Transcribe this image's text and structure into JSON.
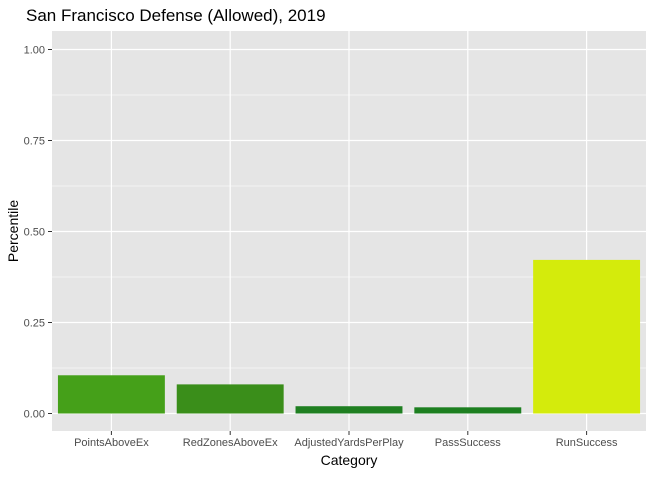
{
  "chart_data": {
    "type": "bar",
    "title": "San Francisco Defense (Allowed), 2019",
    "xlabel": "Category",
    "ylabel": "Percentile",
    "categories": [
      "PointsAboveEx",
      "RedZonesAboveEx",
      "AdjustedYardsPerPlay",
      "PassSuccess",
      "RunSuccess"
    ],
    "values": [
      0.105,
      0.08,
      0.02,
      0.017,
      0.422
    ],
    "colors": [
      "#45a019",
      "#3a8e1a",
      "#1f7f21",
      "#1d7f20",
      "#d4eb0c"
    ],
    "ylim": [
      0,
      1.0
    ],
    "yticks": [
      0.0,
      0.25,
      0.5,
      0.75,
      1.0
    ],
    "ytick_labels": [
      "0.00",
      "0.25",
      "0.50",
      "0.75",
      "1.00"
    ],
    "grid": true,
    "legend": "none",
    "panel_background": "#e5e5e5",
    "grid_color": "#ffffff"
  }
}
